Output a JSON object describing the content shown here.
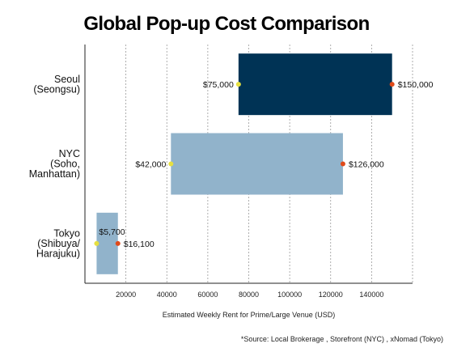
{
  "chart_data": {
    "type": "bar",
    "orientation": "horizontal-range",
    "title": "Global Pop-up Cost Comparison",
    "xlabel": "Estimated Weekly Rent for Prime/Large Venue (USD)",
    "xlim": [
      0,
      160000
    ],
    "xticks": [
      20000,
      40000,
      60000,
      80000,
      100000,
      120000,
      140000
    ],
    "grid": "vertical dashed",
    "note": "*Source: Local Brokerage , Storefront (NYC) , xNomad (Tokyo)",
    "categories": [
      {
        "lines": [
          "Seoul",
          "(Seongsu)"
        ],
        "low": 75000,
        "high": 150000,
        "low_label": "$75,000",
        "high_label": "$150,000",
        "color": "#003355"
      },
      {
        "lines": [
          "NYC",
          "(Soho,",
          "Manhattan)"
        ],
        "low": 42000,
        "high": 126000,
        "low_label": "$42,000",
        "high_label": "$126,000",
        "color": "#91B3CB"
      },
      {
        "lines": [
          "Tokyo",
          "(Shibuya/",
          "Harajuku)"
        ],
        "low": 5700,
        "high": 16100,
        "low_label": "$5,700",
        "high_label": "$16,100",
        "color": "#91B3CB"
      }
    ],
    "marker_colors": {
      "low": "#E6E040",
      "high": "#E04A1A"
    }
  }
}
